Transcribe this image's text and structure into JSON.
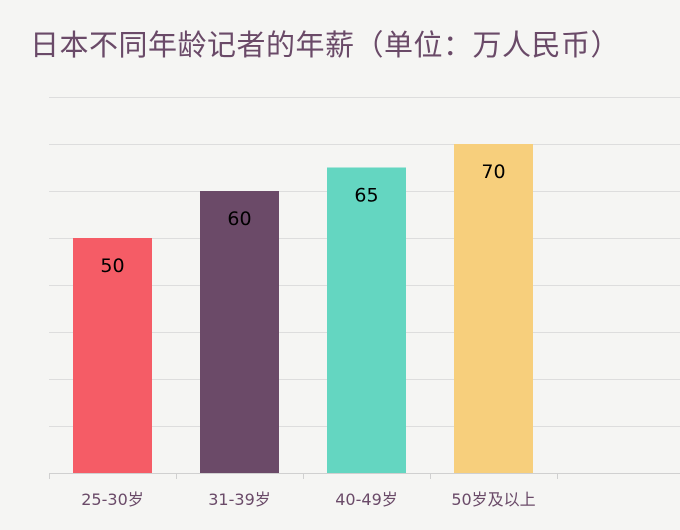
{
  "chart_data": {
    "type": "bar",
    "title": "日本不同年龄记者的年薪（单位：万人民币）",
    "categories": [
      "25-30岁",
      "31-39岁",
      "40-49岁",
      "50岁及以上"
    ],
    "values": [
      50,
      60,
      65,
      70
    ],
    "colors": [
      "#f55c66",
      "#6b4a68",
      "#64d6c1",
      "#f7cf7c"
    ],
    "ylim": [
      0,
      80
    ],
    "grid": true,
    "show_value_labels": true,
    "xlabel": "",
    "ylabel": ""
  }
}
